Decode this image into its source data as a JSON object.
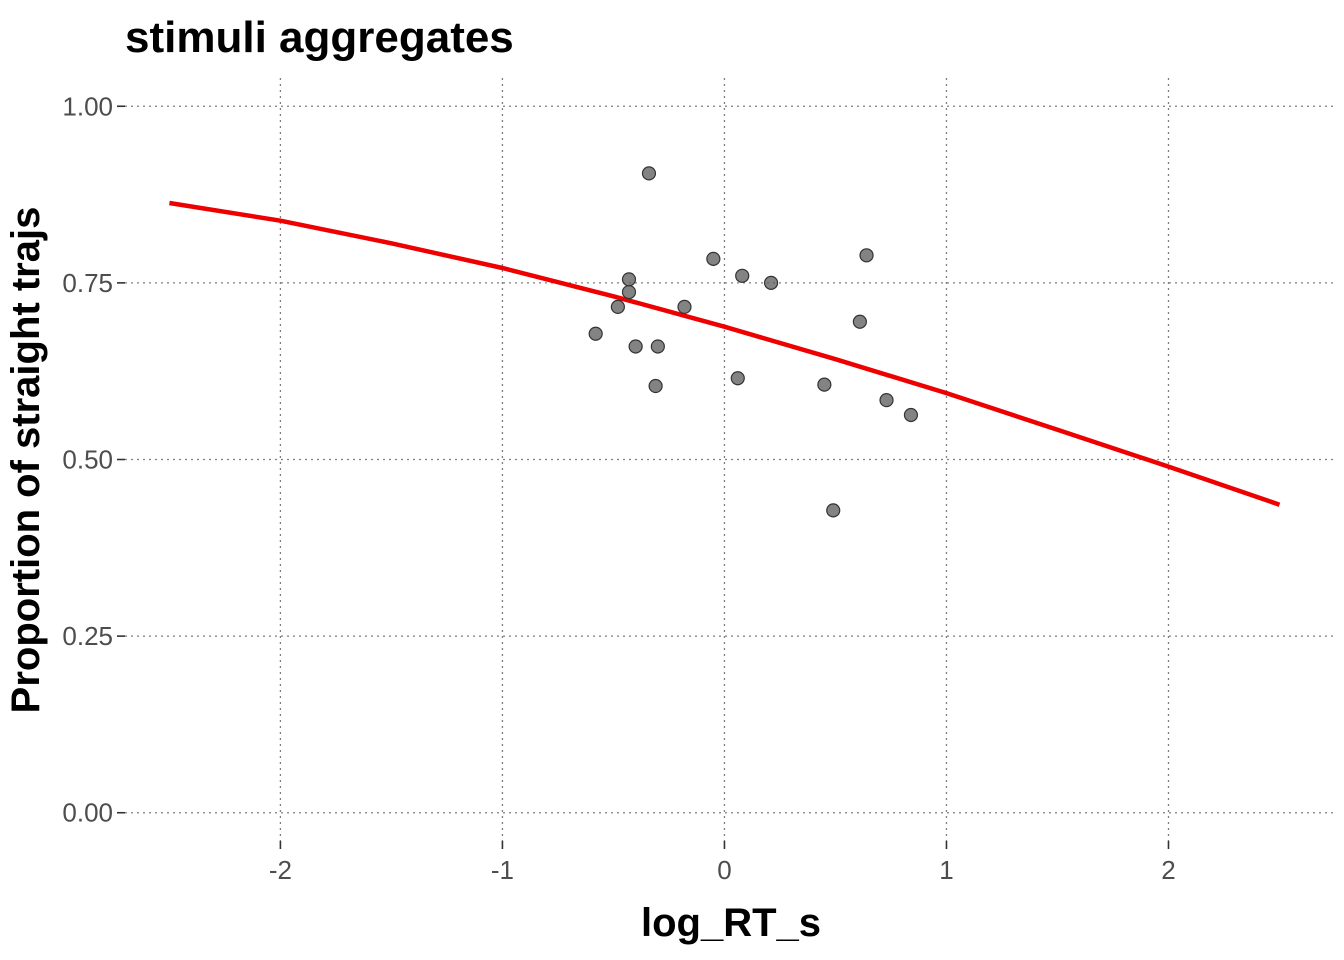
{
  "chart_data": {
    "type": "scatter",
    "title": "stimuli aggregates",
    "xlabel": "log_RT_s",
    "ylabel": "Proportion of straight trajs",
    "xlim": [
      -2.7,
      2.75
    ],
    "ylim": [
      -0.04,
      1.04
    ],
    "x_ticks": [
      -2,
      -1,
      0,
      1,
      2
    ],
    "x_tick_labels": [
      "-2",
      "-1",
      "0",
      "1",
      "2"
    ],
    "y_ticks": [
      0.0,
      0.25,
      0.5,
      0.75,
      1.0
    ],
    "y_tick_labels": [
      "0.00",
      "0.25",
      "0.50",
      "0.75",
      "1.00"
    ],
    "grid": true,
    "grid_style": "dotted",
    "points": [
      {
        "x": -0.34,
        "y": 0.905
      },
      {
        "x": -0.58,
        "y": 0.678
      },
      {
        "x": -0.48,
        "y": 0.716
      },
      {
        "x": -0.43,
        "y": 0.755
      },
      {
        "x": -0.43,
        "y": 0.737
      },
      {
        "x": -0.4,
        "y": 0.66
      },
      {
        "x": -0.3,
        "y": 0.66
      },
      {
        "x": -0.31,
        "y": 0.604
      },
      {
        "x": -0.18,
        "y": 0.716
      },
      {
        "x": -0.05,
        "y": 0.784
      },
      {
        "x": 0.08,
        "y": 0.76
      },
      {
        "x": 0.21,
        "y": 0.75
      },
      {
        "x": 0.06,
        "y": 0.615
      },
      {
        "x": 0.45,
        "y": 0.606
      },
      {
        "x": 0.49,
        "y": 0.428
      },
      {
        "x": 0.61,
        "y": 0.695
      },
      {
        "x": 0.64,
        "y": 0.789
      },
      {
        "x": 0.73,
        "y": 0.584
      },
      {
        "x": 0.84,
        "y": 0.563
      }
    ],
    "fit_line": {
      "color": "#ee0000",
      "x": [
        -2.5,
        -2.0,
        -1.5,
        -1.0,
        -0.5,
        0.0,
        0.5,
        1.0,
        1.5,
        2.0,
        2.5
      ],
      "y": [
        0.863,
        0.838,
        0.806,
        0.771,
        0.731,
        0.688,
        0.642,
        0.594,
        0.542,
        0.49,
        0.436
      ]
    },
    "point_color": "#595959"
  }
}
